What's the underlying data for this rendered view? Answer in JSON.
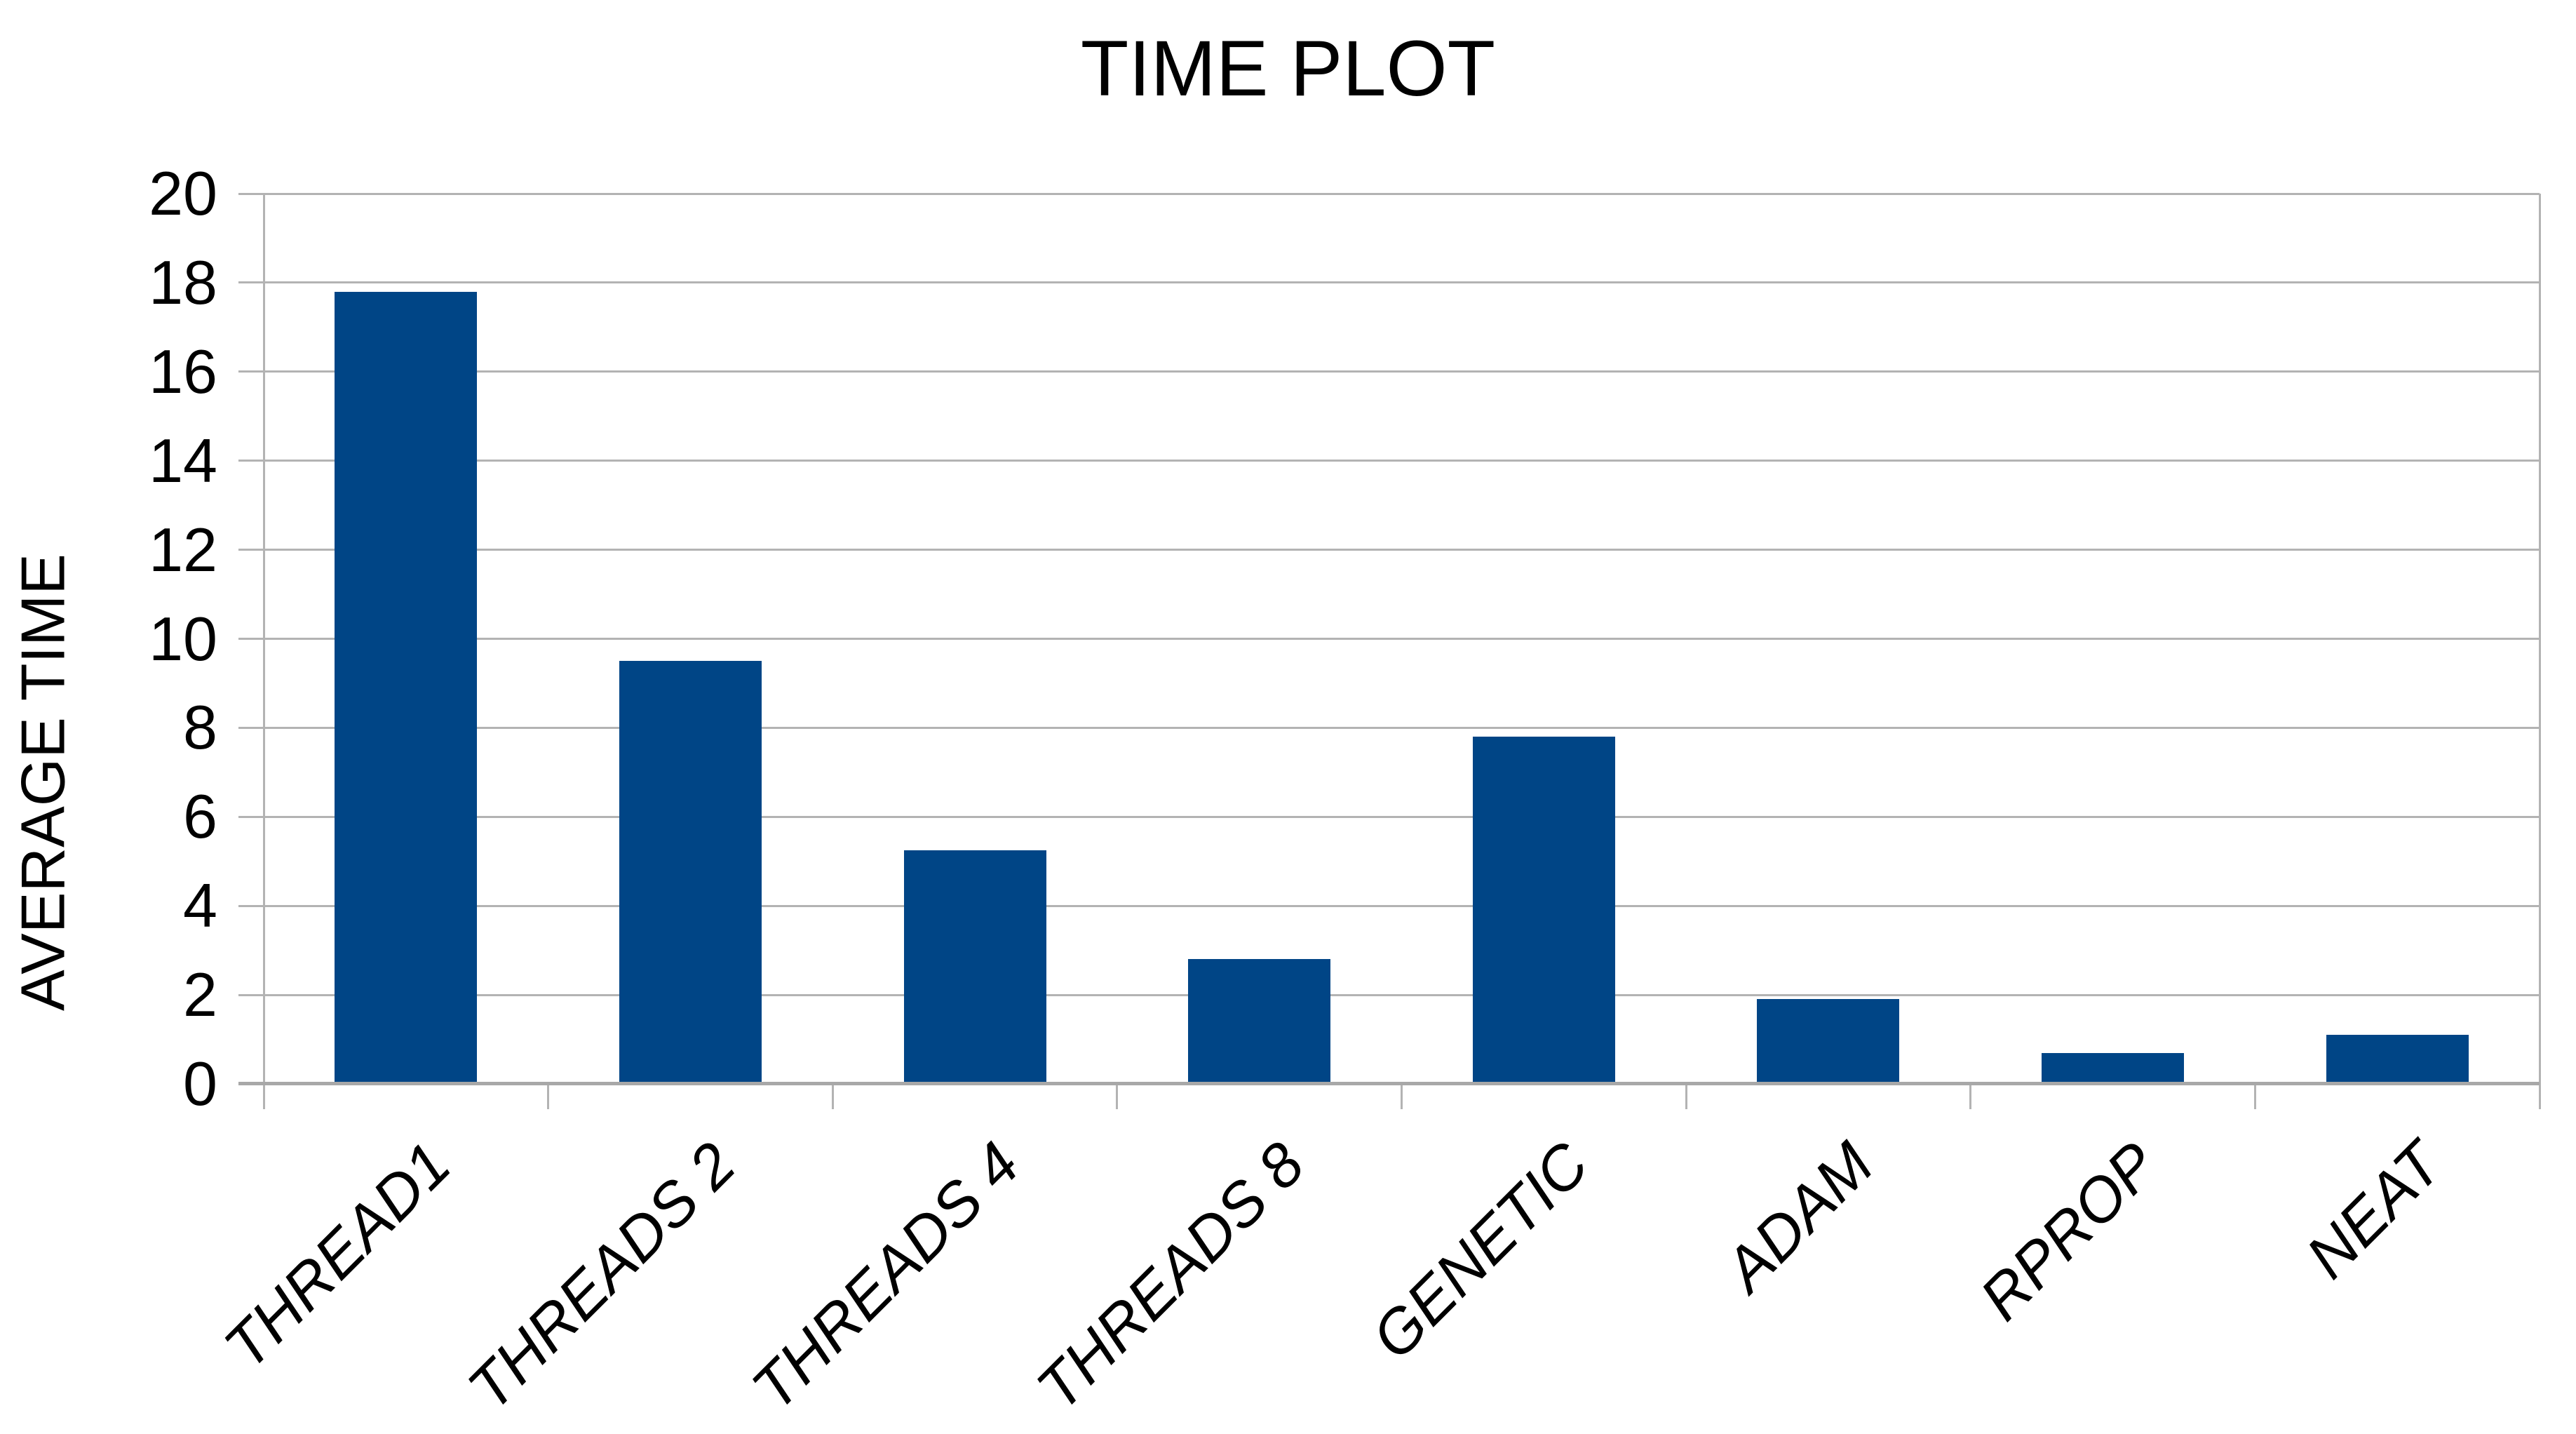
{
  "chart_data": {
    "type": "bar",
    "title": "TIME PLOT",
    "xlabel": "",
    "ylabel": "AVERAGE TIME",
    "categories": [
      "THREAD1",
      "THREADS 2",
      "THREADS 4",
      "THREADS 8",
      "GENETIC",
      "ADAM",
      "RPROP",
      "NEAT"
    ],
    "values": [
      17.8,
      9.5,
      5.25,
      2.8,
      7.8,
      1.9,
      0.7,
      1.1
    ],
    "ylim": [
      0,
      20
    ],
    "ytick_step": 2,
    "ytick_labels": [
      "0",
      "2",
      "4",
      "6",
      "8",
      "10",
      "12",
      "14",
      "16",
      "18",
      "20"
    ],
    "grid": "horizontal",
    "legend": "none",
    "x_label_rotation_deg": 45,
    "x_label_style": "italic",
    "colors": {
      "bar": "#004586",
      "gridline": "#b3b3b3",
      "axis_line": "#b3b3b3",
      "baseline": "#a8a8a8",
      "text": "#000000",
      "background": "#ffffff"
    }
  }
}
